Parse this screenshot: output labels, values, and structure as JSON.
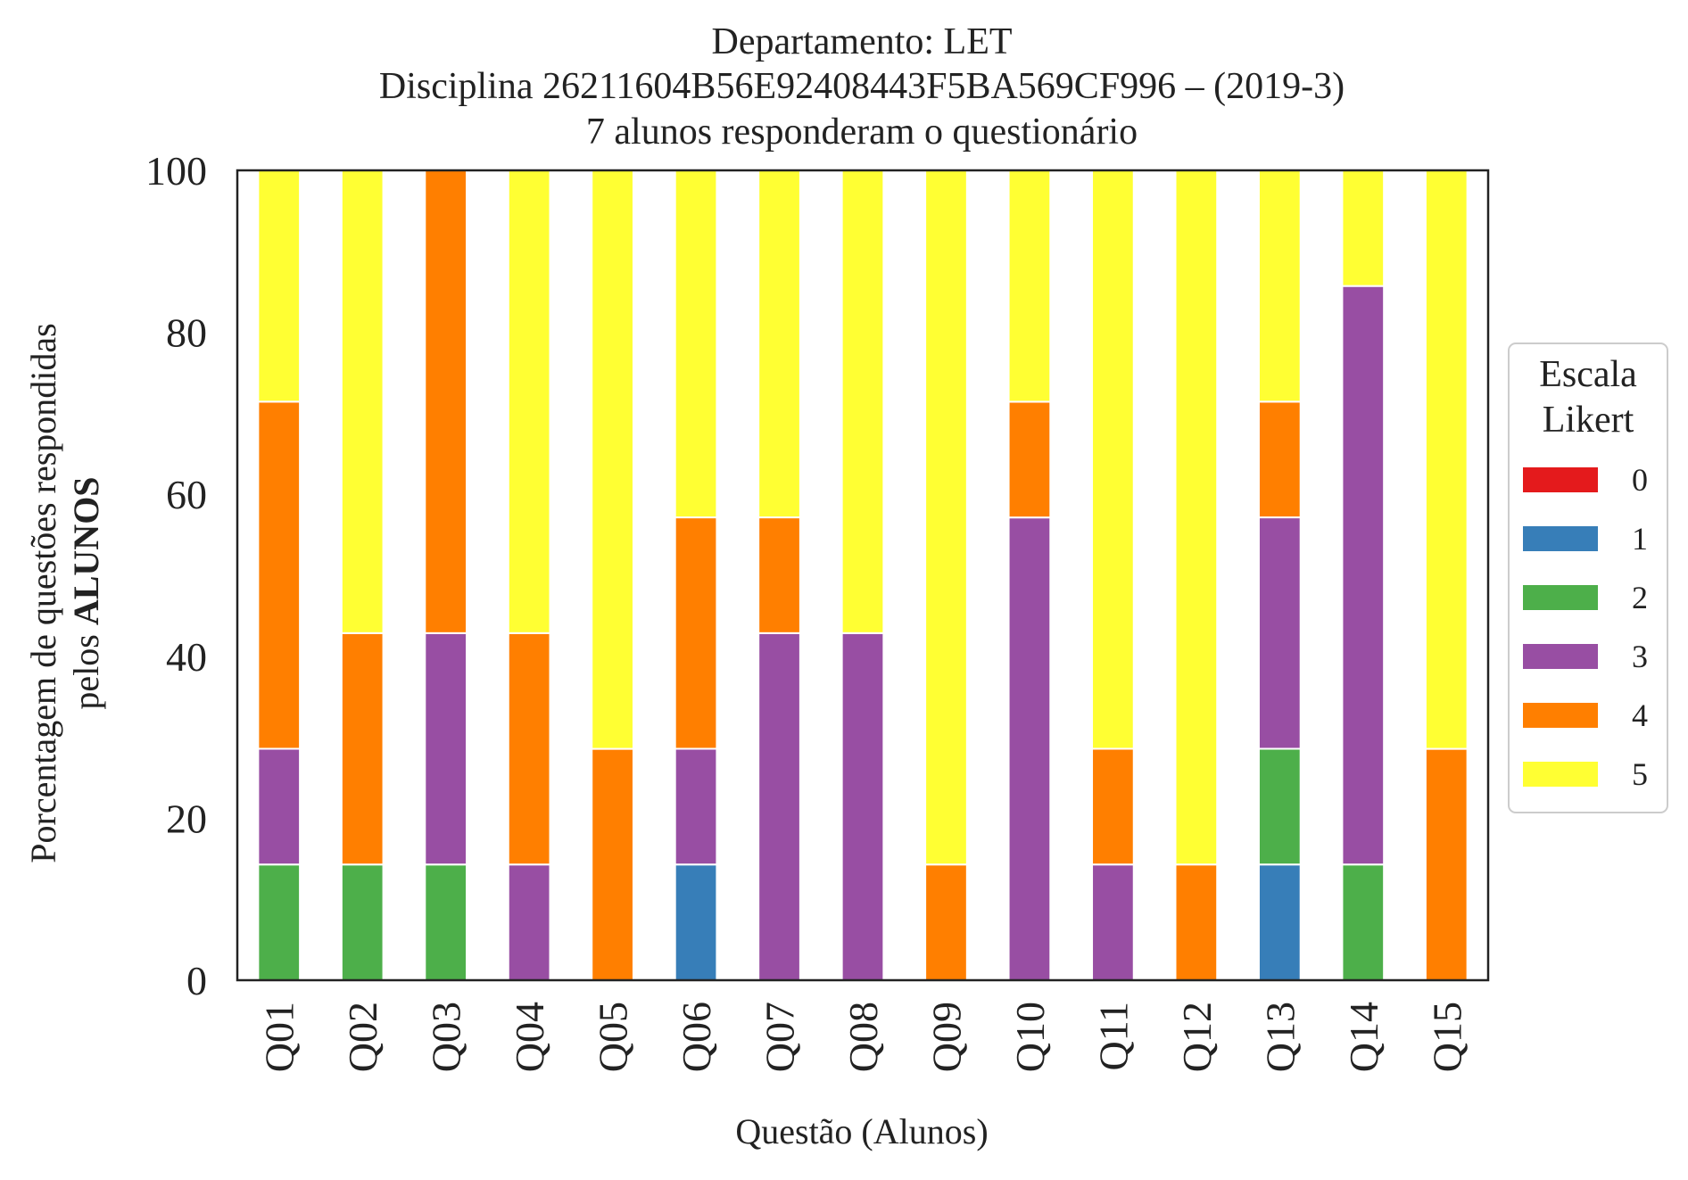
{
  "chart_data": {
    "type": "bar",
    "stacked": true,
    "title_lines": [
      "Departamento: LET",
      "Disciplina 26211604B56E92408443F5BA569CF996 – (2019-3)",
      "7 alunos responderam o questionário"
    ],
    "xlabel": "Questão (Alunos)",
    "ylabel_line1": "Porcentagem de questões respondidas",
    "ylabel_line2_prefix": "pelos ",
    "ylabel_line2_bold": "ALUNOS",
    "ylim": [
      0,
      100
    ],
    "yticks": [
      "0",
      "20",
      "40",
      "60",
      "80",
      "100"
    ],
    "grid": false,
    "legend_position": "right",
    "legend_title_lines": [
      "Escala",
      "Likert"
    ],
    "categories": [
      "Q01",
      "Q02",
      "Q03",
      "Q04",
      "Q05",
      "Q06",
      "Q07",
      "Q08",
      "Q09",
      "Q10",
      "Q11",
      "Q12",
      "Q13",
      "Q14",
      "Q15"
    ],
    "series": [
      {
        "name": "0",
        "color": "#e41a1c",
        "values": [
          0,
          0,
          0,
          0,
          0,
          0,
          0,
          0,
          0,
          0,
          0,
          0,
          0,
          0,
          0
        ]
      },
      {
        "name": "1",
        "color": "#377eb8",
        "values": [
          0,
          0,
          0,
          0,
          0,
          14.29,
          0,
          0,
          0,
          0,
          0,
          0,
          14.29,
          0,
          0
        ]
      },
      {
        "name": "2",
        "color": "#4daf4a",
        "values": [
          14.29,
          14.29,
          14.29,
          0,
          0,
          0,
          0,
          0,
          0,
          0,
          0,
          0,
          14.29,
          14.29,
          0
        ]
      },
      {
        "name": "3",
        "color": "#984ea3",
        "values": [
          14.29,
          0,
          28.57,
          14.29,
          0,
          14.29,
          42.86,
          42.86,
          0,
          57.14,
          14.29,
          0,
          28.57,
          71.43,
          0
        ]
      },
      {
        "name": "4",
        "color": "#ff7f00",
        "values": [
          42.86,
          28.57,
          57.14,
          28.57,
          28.57,
          28.57,
          14.29,
          0,
          14.29,
          14.29,
          14.29,
          14.29,
          14.29,
          0,
          28.57
        ]
      },
      {
        "name": "5",
        "color": "#ffff33",
        "values": [
          28.57,
          57.14,
          0,
          57.14,
          71.43,
          42.86,
          42.86,
          57.14,
          85.71,
          28.57,
          71.43,
          85.71,
          28.57,
          14.29,
          71.43
        ]
      }
    ]
  }
}
